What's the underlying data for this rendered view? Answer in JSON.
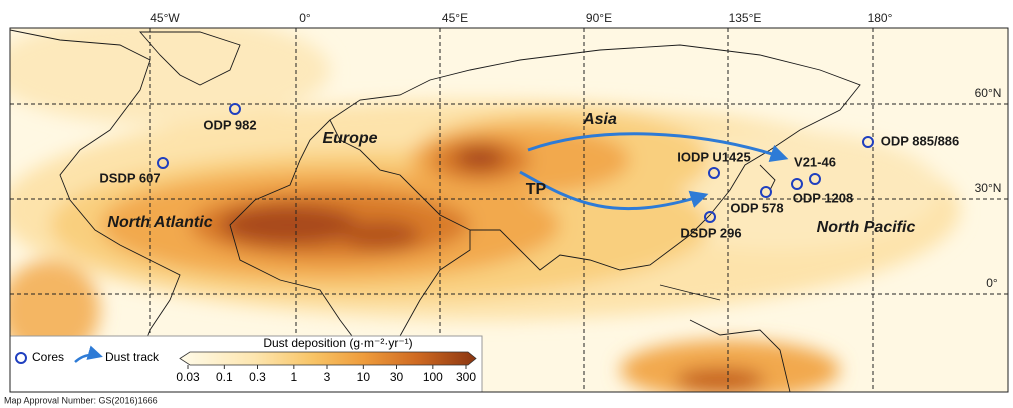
{
  "map": {
    "longitude_labels": [
      "45°W",
      "0°",
      "45°E",
      "90°E",
      "135°E",
      "180°"
    ],
    "latitude_labels": [
      "60°N",
      "30°N",
      "0°"
    ],
    "regions": [
      "Europe",
      "Asia",
      "North Atlantic",
      "North Pacific",
      "TP"
    ],
    "cores": [
      "ODP 982",
      "DSDP 607",
      "IODP U1425",
      "V21-46",
      "ODP 1208",
      "ODP 578",
      "DSDP 296",
      "ODP 885/886"
    ]
  },
  "legend": {
    "cores": "Cores",
    "dust_track": "Dust track",
    "colorbar_title": "Dust deposition (g·m⁻²·yr⁻¹)",
    "colorbar_ticks": [
      0.03,
      0.1,
      0.3,
      1,
      3,
      10,
      30,
      100,
      300
    ]
  },
  "footer": "Map Approval Number: GS(2016)1666"
}
